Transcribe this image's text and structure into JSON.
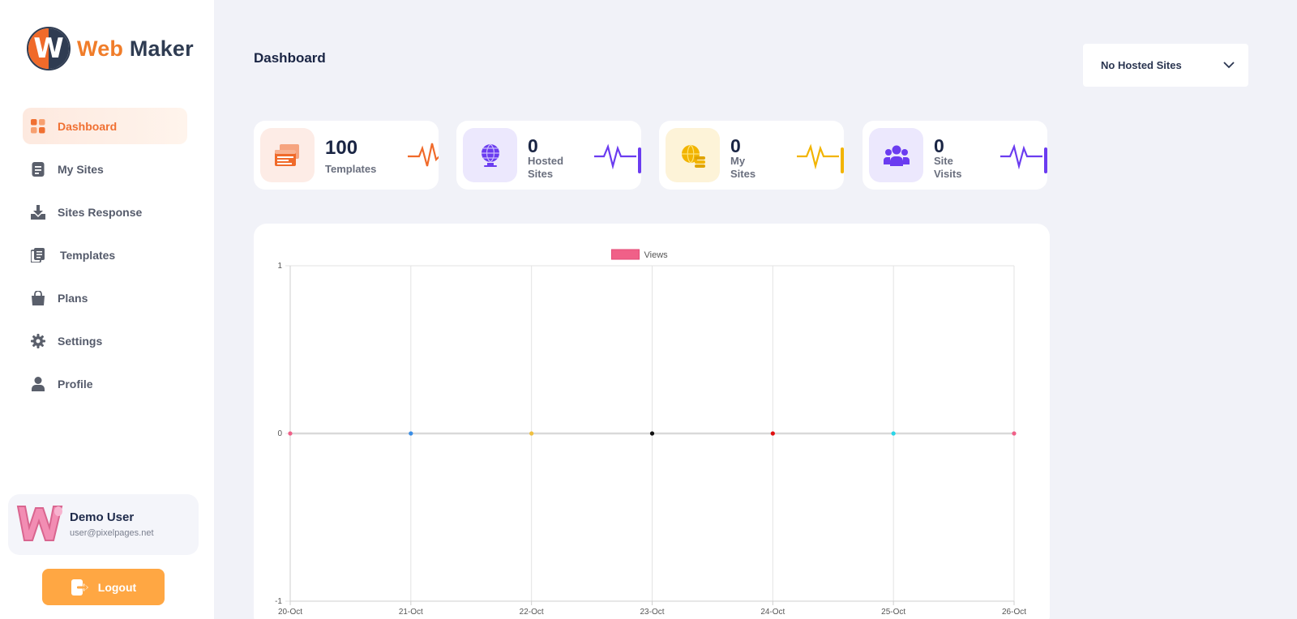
{
  "brand": {
    "web": "Web",
    "maker": "Maker",
    "logo_letter": "W"
  },
  "nav": {
    "items": [
      {
        "label": "Dashboard",
        "icon": "dashboard-grid-icon",
        "active": true
      },
      {
        "label": "My Sites",
        "icon": "document-icon"
      },
      {
        "label": "Sites Response",
        "icon": "download-tray-icon"
      },
      {
        "label": "Templates",
        "icon": "pages-icon"
      },
      {
        "label": "Plans",
        "icon": "shopping-bag-icon"
      },
      {
        "label": "Settings",
        "icon": "gear-icon"
      },
      {
        "label": "Profile",
        "icon": "person-icon"
      }
    ]
  },
  "user": {
    "name": "Demo User",
    "email": "user@pixelpages.net"
  },
  "logout_label": "Logout",
  "header": {
    "title": "Dashboard",
    "site_select_value": "No Hosted Sites"
  },
  "stats": [
    {
      "value": "100",
      "label": "Templates",
      "icon": "browser-windows-icon",
      "accent": "#f06a2a",
      "bg": "#fdece6"
    },
    {
      "value": "0",
      "label": "Hosted Sites",
      "icon": "globe-monitor-icon",
      "accent": "#6b3cf0",
      "bg": "#ece8fd"
    },
    {
      "value": "0",
      "label": "My Sites",
      "icon": "coins-icon",
      "accent": "#f2b400",
      "bg": "#fdf3d8"
    },
    {
      "value": "0",
      "label": "Site Visits",
      "icon": "users-group-icon",
      "accent": "#6b3cf0",
      "bg": "#ece8fd"
    }
  ],
  "chart_data": {
    "type": "line",
    "x": [
      "20-Oct",
      "21-Oct",
      "22-Oct",
      "23-Oct",
      "24-Oct",
      "25-Oct",
      "26-Oct"
    ],
    "series": [
      {
        "name": "Views",
        "values": [
          0,
          0,
          0,
          0,
          0,
          0,
          0
        ],
        "color": "#f06088"
      }
    ],
    "point_colors": [
      "#f06088",
      "#3a8ee6",
      "#f0c040",
      "#111111",
      "#e01010",
      "#29d6e8",
      "#f06088"
    ],
    "y_ticks": [
      "1",
      "0",
      "-1"
    ],
    "ylim": [
      -1,
      1
    ],
    "grid": true,
    "legend": "top-center"
  }
}
